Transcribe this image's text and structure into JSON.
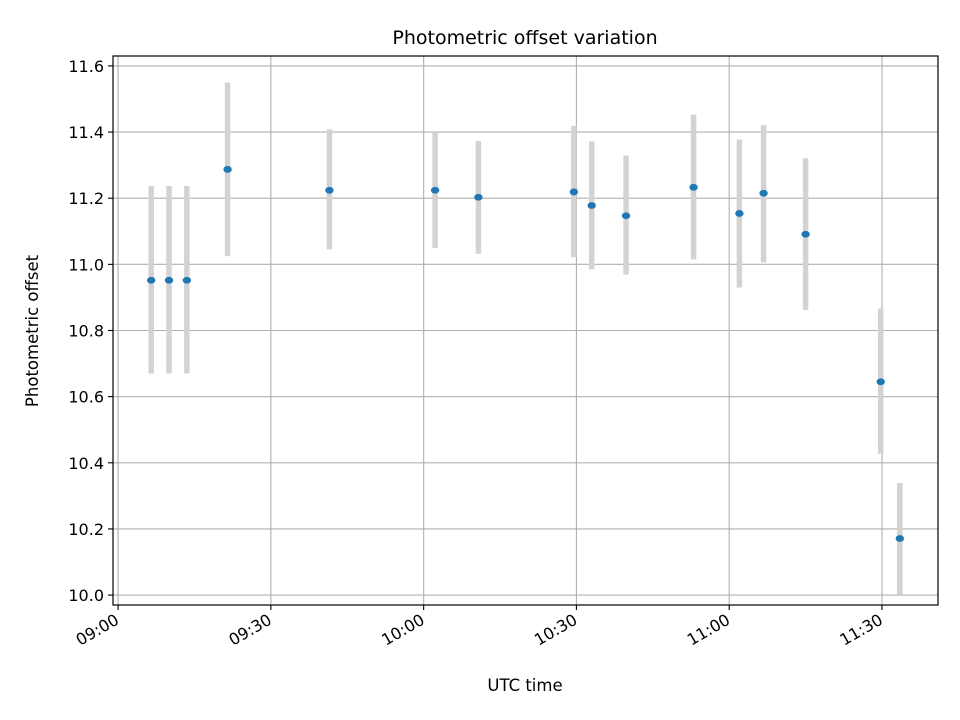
{
  "chart_data": {
    "type": "scatter",
    "title": "Photometric offset variation",
    "xlabel": "UTC time",
    "ylabel": "Photometric offset",
    "x_axis": {
      "type": "time",
      "range": [
        "08:59",
        "11:41"
      ],
      "ticks": [
        "09:00",
        "09:30",
        "10:00",
        "10:30",
        "11:00",
        "11:30"
      ]
    },
    "y_axis": {
      "range": [
        9.97,
        11.63
      ],
      "ticks": [
        "10.0",
        "10.2",
        "10.4",
        "10.6",
        "10.8",
        "11.0",
        "11.2",
        "11.4",
        "11.6"
      ]
    },
    "grid": true,
    "colors": {
      "marker": "#1f77b4",
      "errorbar": "#d3d3d3",
      "grid": "#b0b0b0"
    },
    "points": [
      {
        "time": "09:06:30",
        "y": 10.952,
        "low": 10.67,
        "high": 11.237
      },
      {
        "time": "09:10:00",
        "y": 10.952,
        "low": 10.67,
        "high": 11.237
      },
      {
        "time": "09:13:30",
        "y": 10.952,
        "low": 10.67,
        "high": 11.237
      },
      {
        "time": "09:21:30",
        "y": 11.287,
        "low": 11.025,
        "high": 11.55
      },
      {
        "time": "09:41:30",
        "y": 11.224,
        "low": 11.045,
        "high": 11.408
      },
      {
        "time": "10:02:15",
        "y": 11.224,
        "low": 11.05,
        "high": 11.397
      },
      {
        "time": "10:10:45",
        "y": 11.203,
        "low": 11.032,
        "high": 11.373
      },
      {
        "time": "10:29:30",
        "y": 11.219,
        "low": 11.022,
        "high": 11.419
      },
      {
        "time": "10:33:00",
        "y": 11.178,
        "low": 10.985,
        "high": 11.372
      },
      {
        "time": "10:39:45",
        "y": 11.147,
        "low": 10.969,
        "high": 11.329
      },
      {
        "time": "10:53:00",
        "y": 11.233,
        "low": 11.015,
        "high": 11.453
      },
      {
        "time": "11:02:00",
        "y": 11.154,
        "low": 10.93,
        "high": 11.377
      },
      {
        "time": "11:06:45",
        "y": 11.215,
        "low": 11.006,
        "high": 11.421
      },
      {
        "time": "11:15:00",
        "y": 11.091,
        "low": 10.862,
        "high": 11.321
      },
      {
        "time": "11:29:45",
        "y": 10.645,
        "low": 10.427,
        "high": 10.866
      },
      {
        "time": "11:33:30",
        "y": 10.171,
        "low": 10.002,
        "high": 10.339
      }
    ]
  }
}
